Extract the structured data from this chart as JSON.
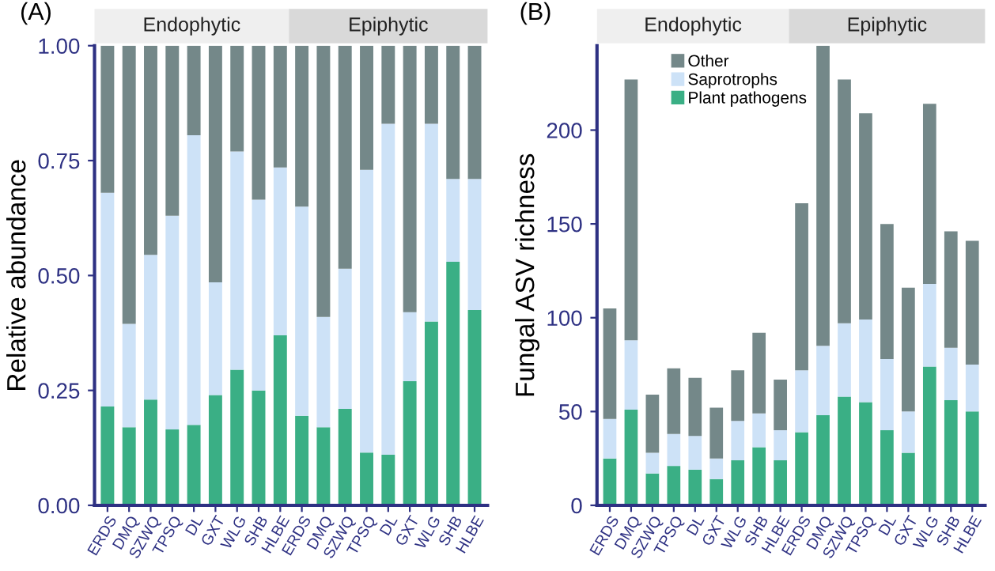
{
  "chart_data": [
    {
      "type": "bar",
      "title": "(A)",
      "ylabel": "Relative abundance",
      "stacked": true,
      "annotations": [
        "Endophytic",
        "Epiphytic"
      ],
      "categories": [
        "ERDS",
        "DMQ",
        "SZWQ",
        "TPSQ",
        "DL",
        "GXT",
        "WLG",
        "SHB",
        "HLBE",
        "ERDS",
        "DMQ",
        "SZWQ",
        "TPSQ",
        "DL",
        "GXT",
        "WLG",
        "SHB",
        "HLBE"
      ],
      "series": [
        {
          "color": "#3aaf85",
          "values": [
            0.215,
            0.17,
            0.23,
            0.165,
            0.175,
            0.24,
            0.295,
            0.25,
            0.37,
            0.195,
            0.17,
            0.21,
            0.115,
            0.11,
            0.27,
            0.4,
            0.53,
            0.425
          ]
        },
        {
          "color": "#cde2f7",
          "values": [
            0.465,
            0.225,
            0.315,
            0.465,
            0.63,
            0.245,
            0.475,
            0.415,
            0.365,
            0.455,
            0.24,
            0.305,
            0.615,
            0.72,
            0.15,
            0.43,
            0.18,
            0.285
          ]
        },
        {
          "color": "#748889",
          "values": [
            0.32,
            0.605,
            0.455,
            0.37,
            0.195,
            0.515,
            0.23,
            0.335,
            0.265,
            0.35,
            0.59,
            0.485,
            0.27,
            0.17,
            0.58,
            0.17,
            0.29,
            0.29
          ]
        }
      ],
      "ylim": [
        0,
        1
      ],
      "yticks": [
        {
          "value": 0,
          "label": "0.00"
        },
        {
          "value": 0.25,
          "label": "0.25"
        },
        {
          "value": 0.5,
          "label": "0.50"
        },
        {
          "value": 0.75,
          "label": "0.75"
        },
        {
          "value": 1,
          "label": "1.00"
        }
      ],
      "grid": false,
      "legend": false
    },
    {
      "type": "bar",
      "title": "(B)",
      "ylabel": "Fungal ASV richness",
      "stacked": true,
      "annotations": [
        "Endophytic",
        "Epiphytic"
      ],
      "categories": [
        "ERDS",
        "DMQ",
        "SZWQ",
        "TPSQ",
        "DL",
        "GXT",
        "WLG",
        "SHB",
        "HLBE",
        "ERDS",
        "DMQ",
        "SZWQ",
        "TPSQ",
        "DL",
        "GXT",
        "WLG",
        "SHB",
        "HLBE"
      ],
      "series": [
        {
          "name": "Plant pathogens",
          "color": "#3aaf85",
          "values": [
            25,
            51,
            17,
            21,
            19,
            14,
            24,
            31,
            24,
            39,
            48,
            58,
            55,
            40,
            28,
            74,
            56,
            50
          ]
        },
        {
          "name": "Saprotrophs",
          "color": "#cde2f7",
          "values": [
            21,
            37,
            11,
            17,
            18,
            11,
            21,
            18,
            16,
            33,
            37,
            39,
            44,
            38,
            22,
            44,
            28,
            25
          ]
        },
        {
          "name": "Other",
          "color": "#748889",
          "values": [
            59,
            139,
            31,
            35,
            31,
            27,
            27,
            43,
            27,
            89,
            160,
            130,
            110,
            72,
            66,
            96,
            62,
            66
          ]
        }
      ],
      "ylim": [
        0,
        245
      ],
      "yticks": [
        0,
        50,
        100,
        150,
        200
      ],
      "grid": false,
      "legend": "top left"
    }
  ]
}
